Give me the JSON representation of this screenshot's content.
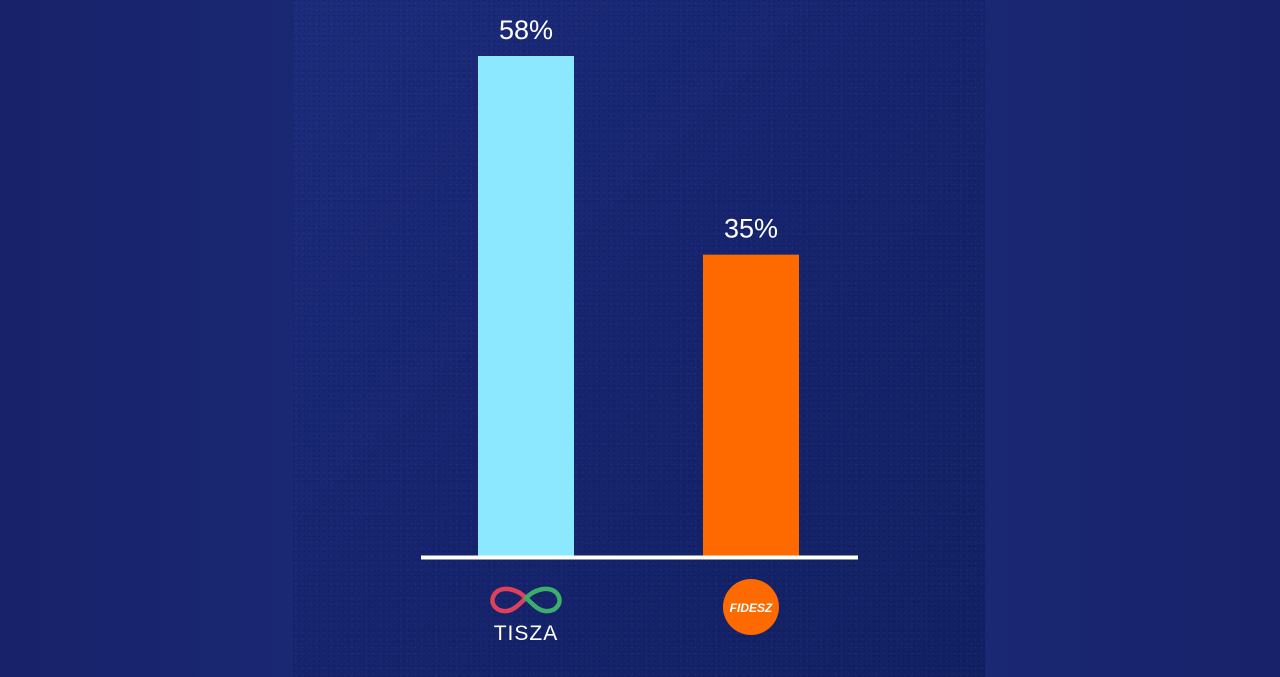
{
  "chart_data": {
    "type": "bar",
    "categories": [
      "TISZA",
      "FIDESZ"
    ],
    "values": [
      58,
      35
    ],
    "value_labels": [
      "58%",
      "35%"
    ],
    "colors": [
      "#8be8ff",
      "#ff6a00"
    ],
    "ylim": [
      0,
      58
    ],
    "grid": false,
    "baseline_color": "#ffffff",
    "icons": [
      "tisza-infinity-logo-icon",
      "fidesz-orange-circle-logo-icon"
    ],
    "logo_colors": {
      "tisza_left": "#e0415a",
      "tisza_right": "#3cae6a",
      "fidesz": "#ff6a00"
    },
    "category_text_labels": [
      "TISZA",
      "FIDESZ"
    ]
  },
  "background": {
    "panel_color": "#172571",
    "side_color": "#18236b"
  }
}
